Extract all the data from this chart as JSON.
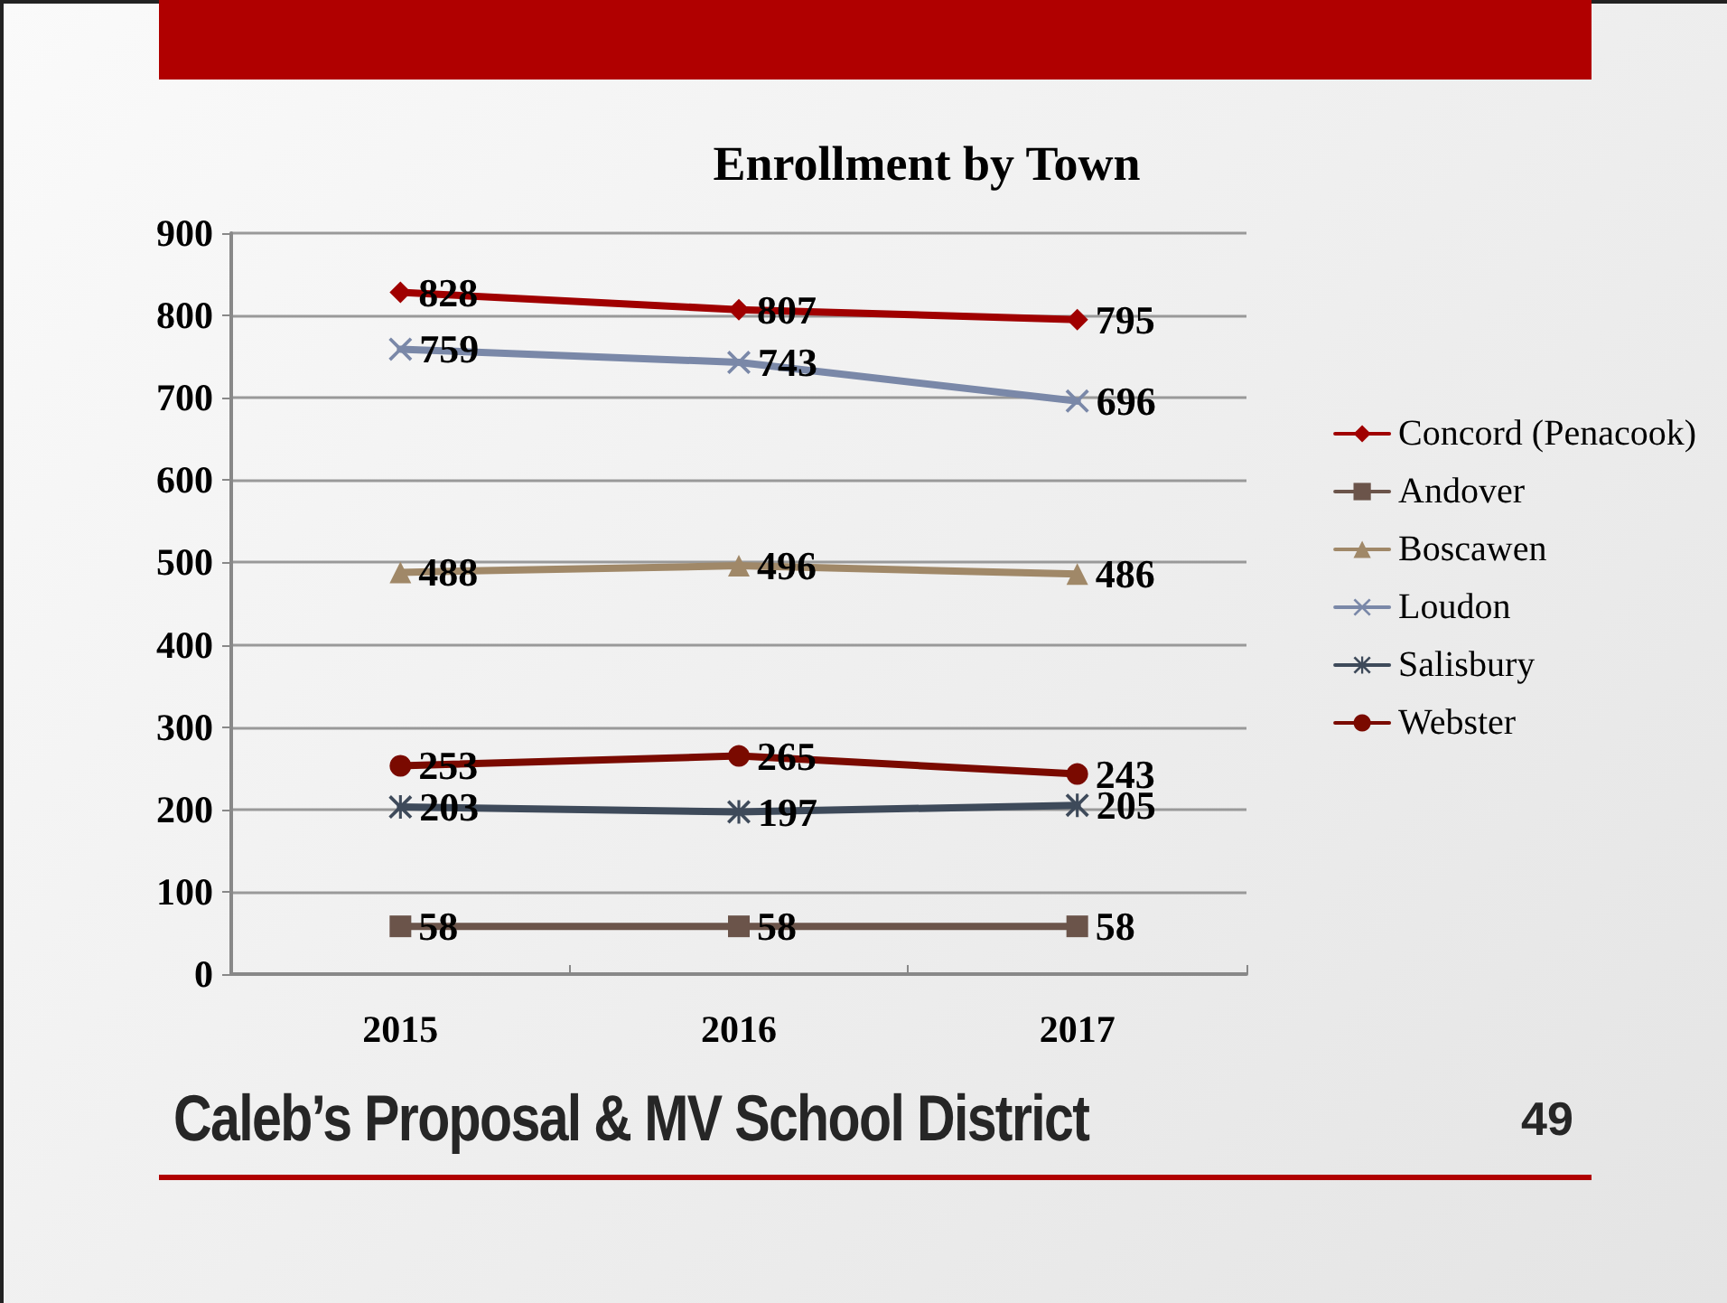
{
  "chart_data": {
    "type": "line",
    "title": "Enrollment by Town",
    "categories": [
      "2015",
      "2016",
      "2017"
    ],
    "series": [
      {
        "name": "Concord (Penacook)",
        "color": "#a00000",
        "marker": "diamond",
        "values": [
          828,
          807,
          795
        ]
      },
      {
        "name": "Andover",
        "color": "#6b544a",
        "marker": "square",
        "values": [
          58,
          58,
          58
        ]
      },
      {
        "name": "Boscawen",
        "color": "#a08868",
        "marker": "triangle",
        "values": [
          488,
          496,
          486
        ]
      },
      {
        "name": "Loudon",
        "color": "#7a88a8",
        "marker": "cross",
        "values": [
          759,
          743,
          696
        ]
      },
      {
        "name": "Salisbury",
        "color": "#3e4a5a",
        "marker": "star",
        "values": [
          203,
          197,
          205
        ]
      },
      {
        "name": "Webster",
        "color": "#7a0a00",
        "marker": "circle",
        "values": [
          253,
          265,
          243
        ]
      }
    ],
    "ylim": [
      0,
      900
    ],
    "yticks": [
      0,
      100,
      200,
      300,
      400,
      500,
      600,
      700,
      800,
      900
    ],
    "grid": "y",
    "legend": "right",
    "data_labels": true,
    "line_style": "solid",
    "annotations": [
      "Caleb’s Proposal & MV School District",
      "49"
    ]
  }
}
